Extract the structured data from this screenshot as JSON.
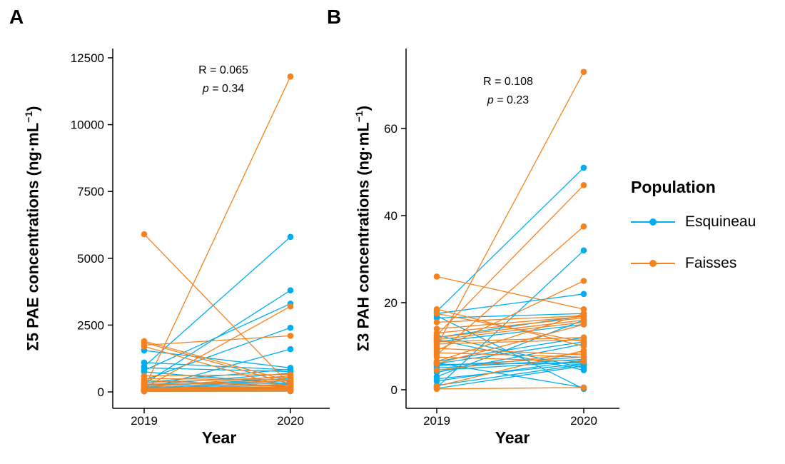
{
  "panels": [
    {
      "panel_label": "A",
      "ylabel": {
        "prefix": "Σ5 PAE concentrations (ng·mL",
        "sup": "−1",
        "suffix": ")"
      },
      "xlabel": "Year",
      "stats": {
        "r_text": "R = 0.065",
        "p_italic": "p",
        "p_rest": " = 0.34"
      }
    },
    {
      "panel_label": "B",
      "ylabel": {
        "prefix": "Σ3 PAH concentrations (ng·mL",
        "sup": "−1",
        "suffix": ")"
      },
      "xlabel": "Year",
      "stats": {
        "r_text": "R = 0.108",
        "p_italic": "p",
        "p_rest": " = 0.23"
      }
    }
  ],
  "legend": {
    "title": "Population",
    "entries": [
      {
        "label": "Esquineau",
        "color": "#00AEEF"
      },
      {
        "label": "Faisses",
        "color": "#F5821F"
      }
    ]
  },
  "chart_data": [
    {
      "type": "line",
      "subtype": "paired-observations",
      "panel": "A",
      "title": "Σ5 PAE concentrations by year",
      "x_categories": [
        "2019",
        "2020"
      ],
      "xlabel": "Year",
      "ylabel": "Σ5 PAE concentrations (ng·mL−1)",
      "ylim": [
        0,
        12500
      ],
      "yticks": [
        0,
        2500,
        5000,
        7500,
        10000,
        12500
      ],
      "grid": false,
      "annotations": [
        "R = 0.065",
        "p = 0.34"
      ],
      "series": [
        {
          "name": "Esquineau",
          "color": "#00AEEF",
          "pairs": [
            [
              950,
              5800
            ],
            [
              300,
              3800
            ],
            [
              800,
              3300
            ],
            [
              450,
              2400
            ],
            [
              100,
              1600
            ],
            [
              1550,
              900
            ],
            [
              1100,
              820
            ],
            [
              900,
              760
            ],
            [
              750,
              300
            ],
            [
              350,
              850
            ],
            [
              250,
              700
            ],
            [
              200,
              500
            ],
            [
              150,
              420
            ],
            [
              120,
              350
            ],
            [
              100,
              280
            ],
            [
              90,
              200
            ],
            [
              80,
              150
            ],
            [
              60,
              120
            ],
            [
              50,
              90
            ],
            [
              40,
              60
            ],
            [
              30,
              40
            ],
            [
              20,
              25
            ]
          ]
        },
        {
          "name": "Faisses",
          "color": "#F5821F",
          "pairs": [
            [
              5900,
              250
            ],
            [
              120,
              11800
            ],
            [
              150,
              3200
            ],
            [
              1750,
              2100
            ],
            [
              1900,
              400
            ],
            [
              1850,
              300
            ],
            [
              1700,
              150
            ],
            [
              600,
              650
            ],
            [
              500,
              450
            ],
            [
              430,
              200
            ],
            [
              350,
              550
            ],
            [
              300,
              300
            ],
            [
              250,
              420
            ],
            [
              200,
              150
            ],
            [
              180,
              600
            ],
            [
              150,
              100
            ],
            [
              120,
              250
            ],
            [
              100,
              180
            ],
            [
              80,
              120
            ],
            [
              60,
              80
            ],
            [
              40,
              50
            ],
            [
              20,
              30
            ]
          ]
        }
      ]
    },
    {
      "type": "line",
      "subtype": "paired-observations",
      "panel": "B",
      "title": "Σ3 PAH concentrations by year",
      "x_categories": [
        "2019",
        "2020"
      ],
      "xlabel": "Year",
      "ylabel": "Σ3 PAH concentrations (ng·mL−1)",
      "ylim": [
        0,
        75
      ],
      "yticks": [
        0,
        20,
        40,
        60
      ],
      "grid": false,
      "annotations": [
        "R = 0.108",
        "p = 0.23"
      ],
      "series": [
        {
          "name": "Esquineau",
          "color": "#00AEEF",
          "pairs": [
            [
              18,
              51
            ],
            [
              0.5,
              32
            ],
            [
              17.5,
              22
            ],
            [
              16.5,
              17.5
            ],
            [
              12,
              17
            ],
            [
              11,
              15
            ],
            [
              6.5,
              12
            ],
            [
              6,
              11
            ],
            [
              5.5,
              7.5
            ],
            [
              5,
              7
            ],
            [
              4.5,
              6.5
            ],
            [
              2.5,
              6
            ],
            [
              0.3,
              5.5
            ],
            [
              12.5,
              5
            ],
            [
              11.5,
              4.5
            ],
            [
              17,
              0.2
            ],
            [
              3,
              16
            ],
            [
              2,
              6.8
            ],
            [
              1,
              5.8
            ],
            [
              6.2,
              0.5
            ],
            [
              4,
              10.5
            ],
            [
              5.8,
              6.2
            ]
          ]
        },
        {
          "name": "Faisses",
          "color": "#F5821F",
          "pairs": [
            [
              26,
              18.5
            ],
            [
              10,
              73
            ],
            [
              12.5,
              47
            ],
            [
              8,
              37.5
            ],
            [
              9,
              25
            ],
            [
              15.5,
              17
            ],
            [
              13,
              16.5
            ],
            [
              12,
              16
            ],
            [
              11.5,
              15.5
            ],
            [
              11,
              12
            ],
            [
              10.5,
              11.5
            ],
            [
              9.5,
              8
            ],
            [
              8.5,
              7.5
            ],
            [
              7.5,
              6.5
            ],
            [
              6.5,
              17.5
            ],
            [
              6,
              15
            ],
            [
              4.5,
              8.5
            ],
            [
              0.8,
              9
            ],
            [
              0.2,
              0.5
            ],
            [
              18.5,
              10
            ],
            [
              17.5,
              11
            ],
            [
              14,
              16.8
            ]
          ]
        }
      ]
    }
  ]
}
